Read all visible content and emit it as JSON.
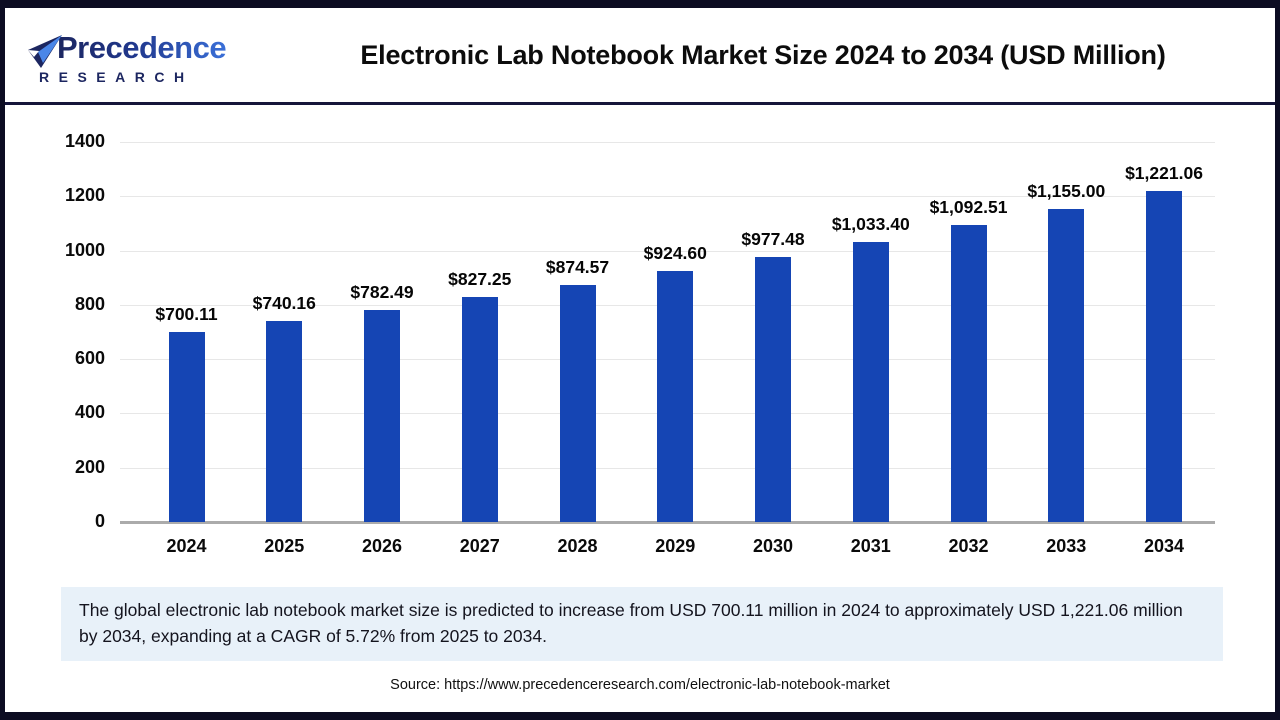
{
  "header": {
    "logo": {
      "name": "Precedence",
      "subtitle": "RESEARCH"
    },
    "title": "Electronic Lab Notebook Market Size 2024 to 2034 (USD Million)"
  },
  "chart_data": {
    "type": "bar",
    "title": "Electronic Lab Notebook Market Size 2024 to 2034 (USD Million)",
    "categories": [
      "2024",
      "2025",
      "2026",
      "2027",
      "2028",
      "2029",
      "2030",
      "2031",
      "2032",
      "2033",
      "2034"
    ],
    "values": [
      700.11,
      740.16,
      782.49,
      827.25,
      874.57,
      924.6,
      977.48,
      1033.4,
      1092.51,
      1155.0,
      1221.06
    ],
    "labels": [
      "$700.11",
      "$740.16",
      "$782.49",
      "$827.25",
      "$874.57",
      "$924.60",
      "$977.48",
      "$1,033.40",
      "$1,092.51",
      "$1,155.00",
      "$1,221.06"
    ],
    "xlabel": "",
    "ylabel": "",
    "ylim": [
      0,
      1400
    ],
    "yticks": [
      0,
      200,
      400,
      600,
      800,
      1000,
      1200,
      1400
    ],
    "grid": true,
    "legend_position": "none",
    "bar_color": "#1545b4"
  },
  "summary": {
    "text": "The global electronic lab notebook market size is predicted to increase from USD 700.11 million in 2024 to approximately USD 1,221.06 million by 2034, expanding at a CAGR of 5.72% from 2025 to 2034."
  },
  "source": {
    "text": "Source: https://www.precedenceresearch.com/electronic-lab-notebook-market"
  }
}
